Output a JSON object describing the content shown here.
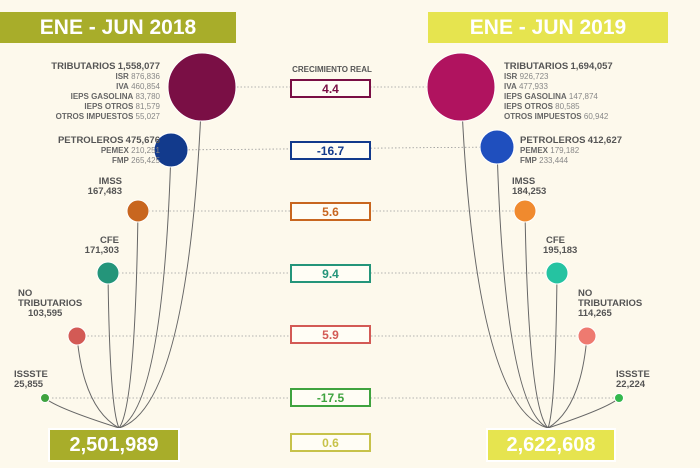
{
  "left": {
    "title": "ENE - JUN 2018",
    "total": "2,501,989",
    "nodes": [
      {
        "key": "trib",
        "name": "TRIBUTARIOS",
        "value": "1,558,077",
        "subs": [
          [
            "ISR",
            "876,836"
          ],
          [
            "IVA",
            "460,854"
          ],
          [
            "IEPS GASOLINA",
            "83,780"
          ],
          [
            "IEPS OTROS",
            "81,579"
          ],
          [
            "OTROS IMPUESTOS",
            "55,027"
          ]
        ]
      },
      {
        "key": "petro",
        "name": "PETROLEROS",
        "value": "475,676",
        "subs": [
          [
            "PEMEX",
            "210,251"
          ],
          [
            "FMP",
            "265,425"
          ]
        ]
      },
      {
        "key": "imss",
        "name": "IMSS",
        "value": "167,483",
        "subs": []
      },
      {
        "key": "cfe",
        "name": "CFE",
        "value": "171,303",
        "subs": []
      },
      {
        "key": "notrib",
        "name": "NO TRIBUTARIOS",
        "value": "103,595",
        "subs": []
      },
      {
        "key": "issste",
        "name": "ISSSTE",
        "value": "25,855",
        "subs": []
      }
    ]
  },
  "right": {
    "title": "ENE - JUN 2019",
    "total": "2,622,608",
    "nodes": [
      {
        "key": "trib",
        "name": "TRIBUTARIOS",
        "value": "1,694,057",
        "subs": [
          [
            "ISR",
            "926,723"
          ],
          [
            "IVA",
            "477,933"
          ],
          [
            "IEPS GASOLINA",
            "147,874"
          ],
          [
            "IEPS OTROS",
            "80,585"
          ],
          [
            "OTROS IMPUESTOS",
            "60,942"
          ]
        ]
      },
      {
        "key": "petro",
        "name": "PETROLEROS",
        "value": "412,627",
        "subs": [
          [
            "PEMEX",
            "179,182"
          ],
          [
            "FMP",
            "233,444"
          ]
        ]
      },
      {
        "key": "imss",
        "name": "IMSS",
        "value": "184,253",
        "subs": []
      },
      {
        "key": "cfe",
        "name": "CFE",
        "value": "195,183",
        "subs": []
      },
      {
        "key": "notrib",
        "name": "NO TRIBUTARIOS",
        "value": "114,265",
        "subs": []
      },
      {
        "key": "issste",
        "name": "ISSSTE",
        "value": "22,224",
        "subs": []
      }
    ]
  },
  "growth": {
    "title": "CRECIMIENTO REAL",
    "items": [
      {
        "key": "trib",
        "value": "4.4"
      },
      {
        "key": "petro",
        "value": "-16.7"
      },
      {
        "key": "imss",
        "value": "5.6"
      },
      {
        "key": "cfe",
        "value": "9.4"
      },
      {
        "key": "notrib",
        "value": "5.9"
      },
      {
        "key": "issste",
        "value": "-17.5"
      },
      {
        "key": "total",
        "value": "0.6"
      }
    ]
  },
  "colors": {
    "bg": "#fdf9ec",
    "header_left": "#a8ad2a",
    "header_right": "#e6e44f",
    "trib_left": "#7a0f45",
    "trib_right": "#b0135f",
    "petro_left": "#123a8c",
    "petro_right": "#1f4fbe",
    "imss_left": "#c8661f",
    "imss_right": "#f08a2e",
    "cfe_left": "#24957a",
    "cfe_right": "#25c3a1",
    "notrib_left": "#d35a55",
    "notrib_right": "#ee7a70",
    "issste_left": "#3fa33f",
    "issste_right": "#33b84d",
    "total_box": "#c7c24a"
  }
}
